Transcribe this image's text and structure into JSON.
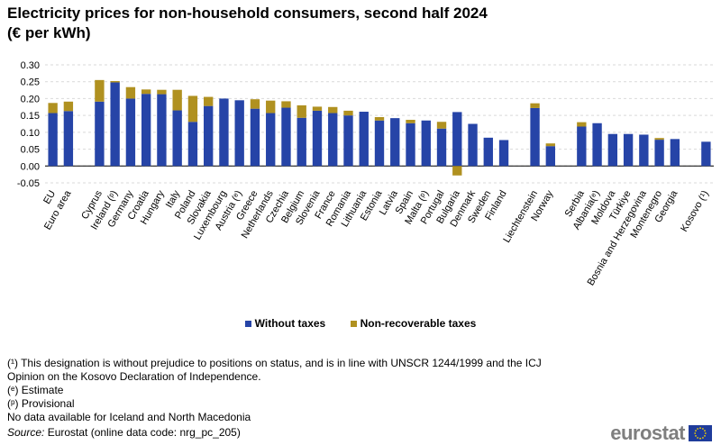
{
  "title_line1": "Electricity prices for non-household consumers, second half 2024",
  "title_line2": "(€ per kWh)",
  "legend": {
    "without_taxes": "Without taxes",
    "non_recoverable": "Non-recoverable taxes"
  },
  "colors": {
    "without_taxes": "#2644a7",
    "non_recoverable": "#b09120",
    "grid": "#d9d9d9"
  },
  "footnotes": [
    "(¹) This designation is without prejudice to positions on status, and is in line with UNSCR 1244/1999 and the ICJ",
    "Opinion on the Kosovo Declaration of Independence.",
    "(ᵉ) Estimate",
    "(ᵖ) Provisional",
    "No data available for Iceland and North Macedonia"
  ],
  "source_label": "Source:",
  "source_text": " Eurostat (online data code: nrg_pc_205)",
  "logo_text": "eurostat",
  "chart_data": {
    "type": "bar",
    "stacked": true,
    "title": "Electricity prices for non-household consumers, second half 2024 (€ per kWh)",
    "ylim": [
      -0.05,
      0.3
    ],
    "yticks": [
      "-0.05",
      "0.00",
      "0.05",
      "0.10",
      "0.15",
      "0.20",
      "0.25",
      "0.30"
    ],
    "grid": "horizontal dashed",
    "legend_position": "bottom",
    "categories": [
      "EU",
      "Euro area",
      "",
      "Cyprus",
      "Ireland (ᵖ)",
      "Germany",
      "Croatia",
      "Hungary",
      "Italy",
      "Poland",
      "Slovakia",
      "Luxembourg",
      "Austria (ᵉ)",
      "Greece",
      "Netherlands",
      "Czechia",
      "Belgium",
      "Slovenia",
      "France",
      "Romania",
      "Lithuania",
      "Estonia",
      "Latvia",
      "Spain",
      "Malta (ᵖ)",
      "Portugal",
      "Bulgaria",
      "Denmark",
      "Sweden",
      "Finland",
      "",
      "Liechtenstein",
      "Norway",
      "",
      "Serbia",
      "Albania(ᵉ)",
      "Moldova",
      "Türkiye",
      "Bosnia and Herzegovina",
      "Montenegro",
      "Georgia",
      "",
      "Kosovo (¹)"
    ],
    "series": [
      {
        "name": "Without taxes",
        "values": [
          0.157,
          0.163,
          null,
          0.191,
          0.248,
          0.2,
          0.214,
          0.213,
          0.165,
          0.131,
          0.178,
          0.2,
          0.195,
          0.17,
          0.157,
          0.173,
          0.143,
          0.164,
          0.157,
          0.15,
          0.161,
          0.135,
          0.142,
          0.127,
          0.135,
          0.111,
          0.16,
          0.125,
          0.084,
          0.077,
          null,
          0.172,
          0.059,
          null,
          0.117,
          0.127,
          0.095,
          0.095,
          0.093,
          0.078,
          0.08,
          null,
          0.072
        ]
      },
      {
        "name": "Non-recoverable taxes",
        "values": [
          0.03,
          0.028,
          null,
          0.064,
          0.004,
          0.034,
          0.013,
          0.013,
          0.061,
          0.077,
          0.027,
          0.0,
          0.0,
          0.028,
          0.037,
          0.019,
          0.037,
          0.012,
          0.018,
          0.014,
          0.0,
          0.01,
          0.0,
          0.01,
          0.0,
          0.02,
          -0.028,
          0.0,
          0.0,
          0.0,
          null,
          0.014,
          0.008,
          null,
          0.013,
          0.0,
          0.0,
          0.0,
          0.0,
          0.005,
          0.0,
          null,
          0.0
        ]
      }
    ]
  }
}
